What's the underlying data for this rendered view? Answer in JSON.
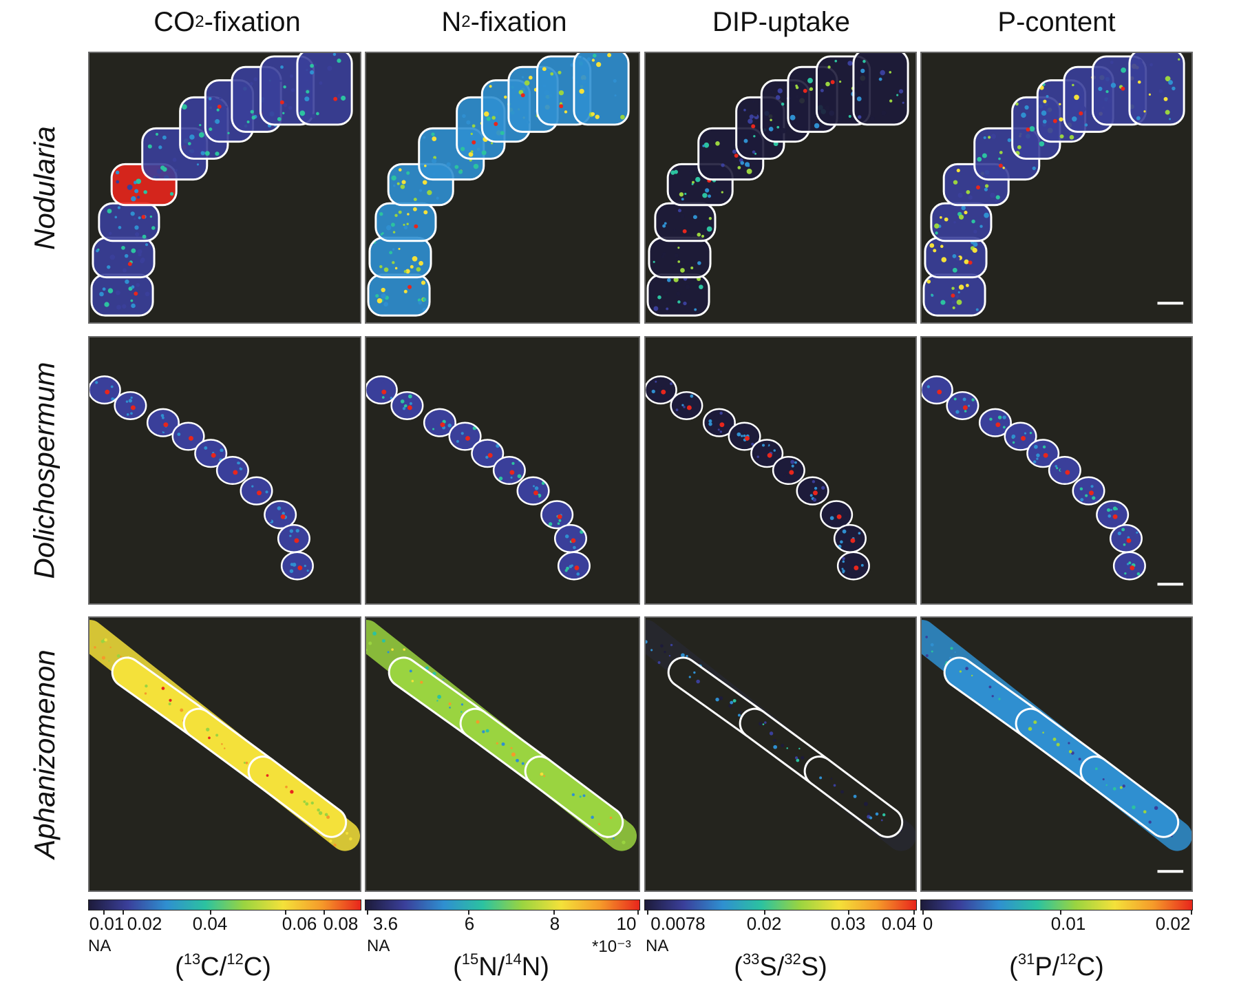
{
  "columns": [
    {
      "name_pre": "CO",
      "name_sub": "2",
      "name_post": "-fixation"
    },
    {
      "name_pre": "N",
      "name_sub": "2",
      "name_post": "-fixation"
    },
    {
      "name_pre": "DIP-uptake",
      "name_sub": "",
      "name_post": ""
    },
    {
      "name_pre": "P-content",
      "name_sub": "",
      "name_post": ""
    }
  ],
  "rows": [
    {
      "label": "Nodularia"
    },
    {
      "label": "Dolichospermum"
    },
    {
      "label": "Aphanizomenon"
    }
  ],
  "colorbars": [
    {
      "ticks": [
        "0.01",
        "0.02",
        "0.04",
        "0.06",
        "0.08"
      ],
      "na": "NA",
      "multiplier": "",
      "ratio": {
        "sup1": "13",
        "el1": "C",
        "sup2": "12",
        "el2": "C"
      }
    },
    {
      "ticks": [
        "3.6",
        "6",
        "8",
        "10"
      ],
      "na": "NA",
      "multiplier": "*10⁻³",
      "ratio": {
        "sup1": "15",
        "el1": "N",
        "sup2": "14",
        "el2": "N"
      }
    },
    {
      "ticks": [
        "0.0078",
        "0.02",
        "0.03",
        "0.04"
      ],
      "na": "NA",
      "multiplier": "",
      "ratio": {
        "sup1": "33",
        "el1": "S",
        "sup2": "32",
        "el2": "S"
      }
    },
    {
      "ticks": [
        "0",
        "0.01",
        "0.02"
      ],
      "na": "",
      "multiplier": "",
      "ratio": {
        "sup1": "31",
        "el1": "P",
        "sup2": "12",
        "el2": "C"
      }
    }
  ],
  "colors": {
    "panel_background": "#24241e",
    "cell_outline": "#ffffff",
    "colormap": [
      "#1d1b3a",
      "#3a3f9a",
      "#2f8fd0",
      "#2cc2a0",
      "#9ad440",
      "#f4e13a",
      "#f59a2a",
      "#e8261c"
    ]
  }
}
